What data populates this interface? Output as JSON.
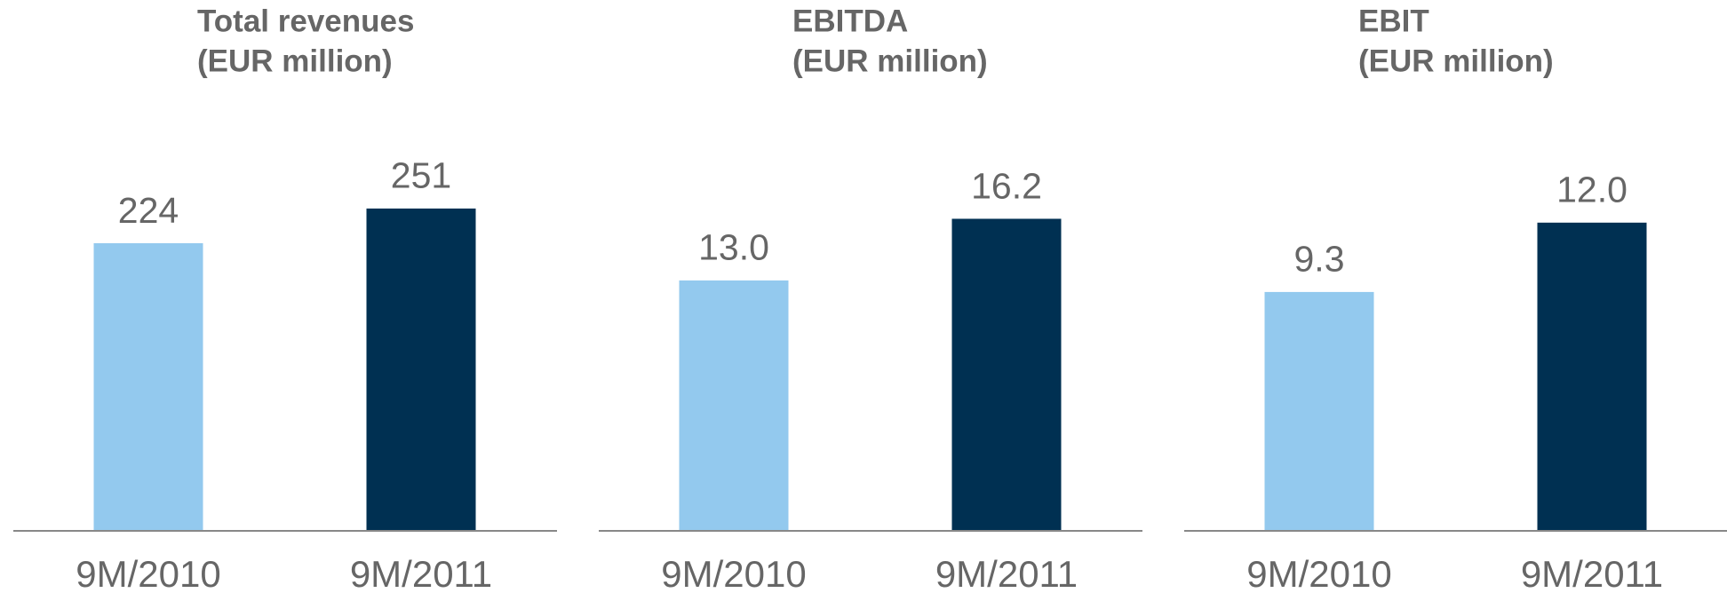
{
  "chart_data": [
    {
      "type": "bar",
      "title": "Total revenues",
      "subtitle": "(EUR million)",
      "categories": [
        "9M/2010",
        "9M/2011"
      ],
      "values": [
        224,
        251
      ],
      "colors": [
        "#93c9ee",
        "#003052"
      ],
      "ylim": [
        0,
        300
      ]
    },
    {
      "type": "bar",
      "title": "EBITDA",
      "subtitle": "(EUR million)",
      "categories": [
        "9M/2010",
        "9M/2011"
      ],
      "values": [
        13.0,
        16.2
      ],
      "value_labels": [
        "13.0",
        "16.2"
      ],
      "colors": [
        "#93c9ee",
        "#003052"
      ],
      "ylim": [
        0,
        20
      ]
    },
    {
      "type": "bar",
      "title": "EBIT",
      "subtitle": "(EUR million)",
      "categories": [
        "9M/2010",
        "9M/2011"
      ],
      "values": [
        9.3,
        12.0
      ],
      "value_labels": [
        "9.3",
        "12.0"
      ],
      "colors": [
        "#93c9ee",
        "#003052"
      ],
      "ylim": [
        0,
        15
      ]
    }
  ]
}
